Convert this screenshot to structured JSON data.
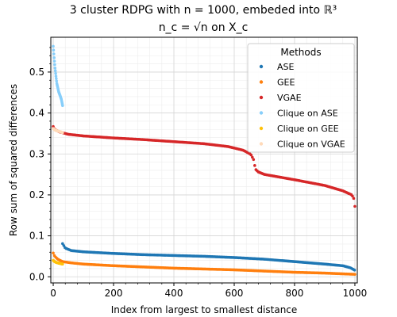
{
  "chart_data": {
    "type": "scatter",
    "title_line1": "3 cluster RDPG with n = 1000, embeded into ℝ³",
    "title_line2": "n_c = √n on X_c",
    "xlabel": "Index from largest to smallest distance",
    "ylabel": "Row sum of squared differences",
    "xlim": [
      -8,
      1008
    ],
    "ylim": [
      -0.015,
      0.585
    ],
    "x_ticks": [
      0,
      200,
      400,
      600,
      800,
      1000
    ],
    "y_ticks": [
      0.0,
      0.1,
      0.2,
      0.3,
      0.4,
      0.5
    ],
    "x_tick_labels": [
      "0",
      "200",
      "400",
      "600",
      "800",
      "1000"
    ],
    "y_tick_labels": [
      "0.0",
      "0.1",
      "0.2",
      "0.3",
      "0.4",
      "0.5"
    ],
    "grid": true,
    "legend": {
      "title": "Methods",
      "placement": "top-right"
    },
    "series": [
      {
        "name": "ASE",
        "color": "#1f77b4",
        "points": [
          [
            31,
            0.081
          ],
          [
            40,
            0.07
          ],
          [
            60,
            0.064
          ],
          [
            100,
            0.061
          ],
          [
            200,
            0.057
          ],
          [
            300,
            0.054
          ],
          [
            400,
            0.052
          ],
          [
            500,
            0.05
          ],
          [
            600,
            0.047
          ],
          [
            700,
            0.043
          ],
          [
            800,
            0.037
          ],
          [
            900,
            0.031
          ],
          [
            960,
            0.027
          ],
          [
            985,
            0.022
          ],
          [
            1000,
            0.016
          ]
        ]
      },
      {
        "name": "GEE",
        "color": "#ff7f0e",
        "points": [
          [
            0,
            0.058
          ],
          [
            5,
            0.05
          ],
          [
            15,
            0.043
          ],
          [
            31,
            0.037
          ],
          [
            60,
            0.034
          ],
          [
            100,
            0.031
          ],
          [
            200,
            0.027
          ],
          [
            300,
            0.024
          ],
          [
            400,
            0.021
          ],
          [
            500,
            0.019
          ],
          [
            600,
            0.017
          ],
          [
            700,
            0.014
          ],
          [
            800,
            0.011
          ],
          [
            900,
            0.009
          ],
          [
            1000,
            0.006
          ]
        ]
      },
      {
        "name": "VGAE",
        "color": "#d62728",
        "points": [
          [
            0,
            0.367
          ],
          [
            5,
            0.36
          ],
          [
            20,
            0.354
          ],
          [
            50,
            0.348
          ],
          [
            100,
            0.344
          ],
          [
            200,
            0.339
          ],
          [
            300,
            0.335
          ],
          [
            400,
            0.33
          ],
          [
            500,
            0.325
          ],
          [
            580,
            0.318
          ],
          [
            630,
            0.309
          ],
          [
            655,
            0.299
          ],
          [
            665,
            0.285
          ],
          [
            670,
            0.263
          ],
          [
            680,
            0.256
          ],
          [
            700,
            0.25
          ],
          [
            800,
            0.237
          ],
          [
            900,
            0.223
          ],
          [
            960,
            0.21
          ],
          [
            990,
            0.2
          ],
          [
            997,
            0.19
          ],
          [
            1000,
            0.172
          ]
        ]
      },
      {
        "name": "Clique on ASE",
        "color": "#87cefa",
        "points": [
          [
            0,
            0.563
          ],
          [
            3,
            0.535
          ],
          [
            6,
            0.51
          ],
          [
            9,
            0.49
          ],
          [
            12,
            0.472
          ],
          [
            15,
            0.462
          ],
          [
            18,
            0.452
          ],
          [
            21,
            0.446
          ],
          [
            24,
            0.44
          ],
          [
            27,
            0.433
          ],
          [
            30,
            0.422
          ],
          [
            31,
            0.418
          ]
        ]
      },
      {
        "name": "Clique on GEE",
        "color": "#ffc20a",
        "points": [
          [
            0,
            0.04
          ],
          [
            5,
            0.037
          ],
          [
            10,
            0.035
          ],
          [
            15,
            0.034
          ],
          [
            20,
            0.033
          ],
          [
            25,
            0.032
          ],
          [
            31,
            0.031
          ]
        ]
      },
      {
        "name": "Clique on VGAE",
        "color": "#ffdab9",
        "points": [
          [
            0,
            0.362
          ],
          [
            5,
            0.359
          ],
          [
            10,
            0.357
          ],
          [
            15,
            0.356
          ],
          [
            20,
            0.355
          ],
          [
            25,
            0.354
          ],
          [
            31,
            0.352
          ]
        ]
      }
    ]
  }
}
